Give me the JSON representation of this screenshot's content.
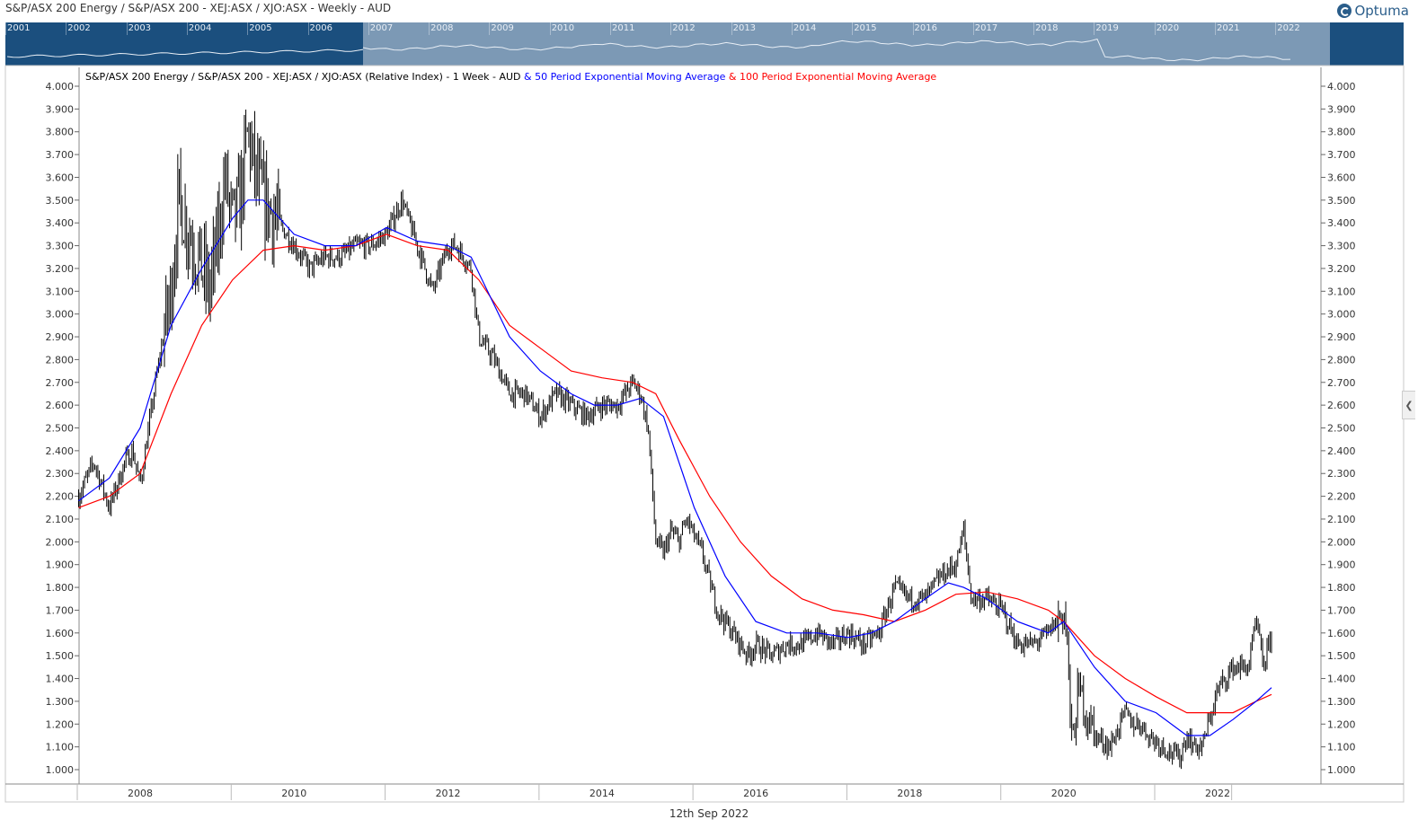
{
  "window": {
    "title": "S&P/ASX 200 Energy / S&P/ASX 200 - XEJ:ASX / XJO:ASX - Weekly - AUD",
    "brand": "Optuma"
  },
  "overview": {
    "years": [
      "2001",
      "2002",
      "2003",
      "2004",
      "2005",
      "2006",
      "2007",
      "2008",
      "2009",
      "2010",
      "2011",
      "2012",
      "2013",
      "2014",
      "2015",
      "2016",
      "2017",
      "2018",
      "2019",
      "2020",
      "2021",
      "2022"
    ]
  },
  "legend": {
    "main": "S&P/ASX 200 Energy / S&P/ASX 200 - XEJ:ASX / XJO:ASX (Relative Index) - 1 Week - AUD",
    "ema50": " & 50 Period Exponential Moving Average",
    "ema100": " & 100 Period Exponential Moving Average"
  },
  "footer": {
    "date": "12th Sep 2022"
  },
  "colors": {
    "price": "#000000",
    "ema50": "#0000ff",
    "ema100": "#ff0000",
    "overview_bg": "#1b4f7e",
    "overview_window": "#7c99b5"
  },
  "chart_data": {
    "type": "line",
    "x_axis": {
      "ticks": [
        "2008",
        "2010",
        "2012",
        "2014",
        "2016",
        "2018",
        "2020",
        "2022"
      ],
      "range": [
        2007.2,
        2023.8
      ]
    },
    "y_axis": {
      "ticks": [
        "1.000",
        "1.100",
        "1.200",
        "1.300",
        "1.400",
        "1.500",
        "1.600",
        "1.700",
        "1.800",
        "1.900",
        "2.000",
        "2.100",
        "2.200",
        "2.300",
        "2.400",
        "2.500",
        "2.600",
        "2.700",
        "2.800",
        "2.900",
        "3.000",
        "3.100",
        "3.200",
        "3.300",
        "3.400",
        "3.500",
        "3.600",
        "3.700",
        "3.800",
        "3.900",
        "4.000"
      ],
      "range": [
        0.9,
        4.1
      ],
      "both_sides": true
    },
    "grid": false,
    "series": [
      {
        "name": "S&P/ASX 200 Energy / S&P/ASX 200 - XEJ:ASX / XJO:ASX (Relative Index)",
        "x": [
          2007.2,
          2007.4,
          2007.6,
          2007.8,
          2007.9,
          2008.0,
          2008.2,
          2008.3,
          2008.4,
          2008.5,
          2008.6,
          2008.7,
          2008.8,
          2008.9,
          2009.0,
          2009.1,
          2009.2,
          2009.3,
          2009.4,
          2009.5,
          2009.6,
          2009.8,
          2010.0,
          2010.2,
          2010.4,
          2010.6,
          2010.8,
          2011.0,
          2011.2,
          2011.4,
          2011.6,
          2011.8,
          2012.0,
          2012.1,
          2012.3,
          2012.4,
          2012.6,
          2012.8,
          2013.0,
          2013.2,
          2013.4,
          2013.6,
          2013.8,
          2014.0,
          2014.2,
          2014.4,
          2014.5,
          2014.6,
          2014.7,
          2014.8,
          2014.9,
          2015.0,
          2015.1,
          2015.3,
          2015.5,
          2015.7,
          2015.9,
          2016.0,
          2016.2,
          2016.4,
          2016.6,
          2016.8,
          2017.0,
          2017.2,
          2017.4,
          2017.6,
          2017.8,
          2018.0,
          2018.2,
          2018.4,
          2018.6,
          2018.7,
          2018.8,
          2019.0,
          2019.2,
          2019.4,
          2019.6,
          2019.8,
          2019.9,
          2020.0,
          2020.05,
          2020.1,
          2020.2,
          2020.3,
          2020.4,
          2020.6,
          2020.8,
          2020.9,
          2021.0,
          2021.1,
          2021.3,
          2021.5,
          2021.6,
          2021.7,
          2021.8,
          2022.0,
          2022.2,
          2022.4,
          2022.5,
          2022.6,
          2022.7
        ],
        "values": [
          2.2,
          2.35,
          2.15,
          2.35,
          2.4,
          2.25,
          2.7,
          2.9,
          3.1,
          3.5,
          3.4,
          3.3,
          3.2,
          3.1,
          3.3,
          3.6,
          3.4,
          3.5,
          3.8,
          3.6,
          3.5,
          3.4,
          3.3,
          3.2,
          3.25,
          3.25,
          3.3,
          3.3,
          3.35,
          3.5,
          3.3,
          3.1,
          3.3,
          3.3,
          3.2,
          2.9,
          2.8,
          2.65,
          2.65,
          2.55,
          2.65,
          2.6,
          2.55,
          2.6,
          2.6,
          2.7,
          2.65,
          2.5,
          2.0,
          1.95,
          2.05,
          2.0,
          2.1,
          1.95,
          1.7,
          1.6,
          1.5,
          1.55,
          1.5,
          1.55,
          1.55,
          1.6,
          1.55,
          1.6,
          1.55,
          1.6,
          1.8,
          1.75,
          1.75,
          1.85,
          1.9,
          2.05,
          1.75,
          1.75,
          1.7,
          1.55,
          1.55,
          1.6,
          1.65,
          1.7,
          1.55,
          1.1,
          1.35,
          1.25,
          1.15,
          1.1,
          1.25,
          1.2,
          1.2,
          1.15,
          1.1,
          1.05,
          1.15,
          1.1,
          1.1,
          1.35,
          1.45,
          1.45,
          1.65,
          1.45,
          1.6
        ]
      },
      {
        "name": "50 Period Exponential Moving Average",
        "x": [
          2007.2,
          2007.6,
          2008.0,
          2008.4,
          2008.8,
          2009.2,
          2009.4,
          2009.6,
          2010.0,
          2010.4,
          2010.8,
          2011.2,
          2011.6,
          2012.0,
          2012.3,
          2012.8,
          2013.2,
          2013.6,
          2013.9,
          2014.2,
          2014.5,
          2014.8,
          2015.2,
          2015.6,
          2016.0,
          2016.4,
          2016.8,
          2017.2,
          2017.5,
          2017.8,
          2018.2,
          2018.5,
          2018.7,
          2019.0,
          2019.4,
          2019.8,
          2020.0,
          2020.4,
          2020.8,
          2021.2,
          2021.6,
          2021.9,
          2022.2,
          2022.5,
          2022.7
        ],
        "values": [
          2.18,
          2.28,
          2.5,
          2.95,
          3.2,
          3.42,
          3.5,
          3.5,
          3.35,
          3.3,
          3.3,
          3.38,
          3.32,
          3.3,
          3.25,
          2.9,
          2.75,
          2.65,
          2.6,
          2.6,
          2.63,
          2.55,
          2.15,
          1.85,
          1.65,
          1.6,
          1.6,
          1.58,
          1.6,
          1.65,
          1.75,
          1.82,
          1.8,
          1.75,
          1.65,
          1.6,
          1.65,
          1.45,
          1.3,
          1.25,
          1.15,
          1.15,
          1.22,
          1.3,
          1.36
        ]
      },
      {
        "name": "100 Period Exponential Moving Average",
        "x": [
          2007.2,
          2007.6,
          2008.0,
          2008.4,
          2008.8,
          2009.2,
          2009.6,
          2010.0,
          2010.4,
          2010.8,
          2011.2,
          2011.6,
          2012.0,
          2012.4,
          2012.8,
          2013.2,
          2013.6,
          2014.0,
          2014.4,
          2014.7,
          2015.0,
          2015.4,
          2015.8,
          2016.2,
          2016.6,
          2017.0,
          2017.4,
          2017.8,
          2018.2,
          2018.6,
          2019.0,
          2019.4,
          2019.8,
          2020.0,
          2020.4,
          2020.8,
          2021.2,
          2021.6,
          2021.9,
          2022.2,
          2022.5,
          2022.7
        ],
        "values": [
          2.15,
          2.2,
          2.3,
          2.65,
          2.95,
          3.15,
          3.28,
          3.3,
          3.28,
          3.3,
          3.35,
          3.3,
          3.28,
          3.15,
          2.95,
          2.85,
          2.75,
          2.72,
          2.7,
          2.65,
          2.45,
          2.2,
          2.0,
          1.85,
          1.75,
          1.7,
          1.68,
          1.65,
          1.7,
          1.77,
          1.78,
          1.75,
          1.7,
          1.65,
          1.5,
          1.4,
          1.32,
          1.25,
          1.25,
          1.25,
          1.3,
          1.33
        ]
      }
    ]
  }
}
